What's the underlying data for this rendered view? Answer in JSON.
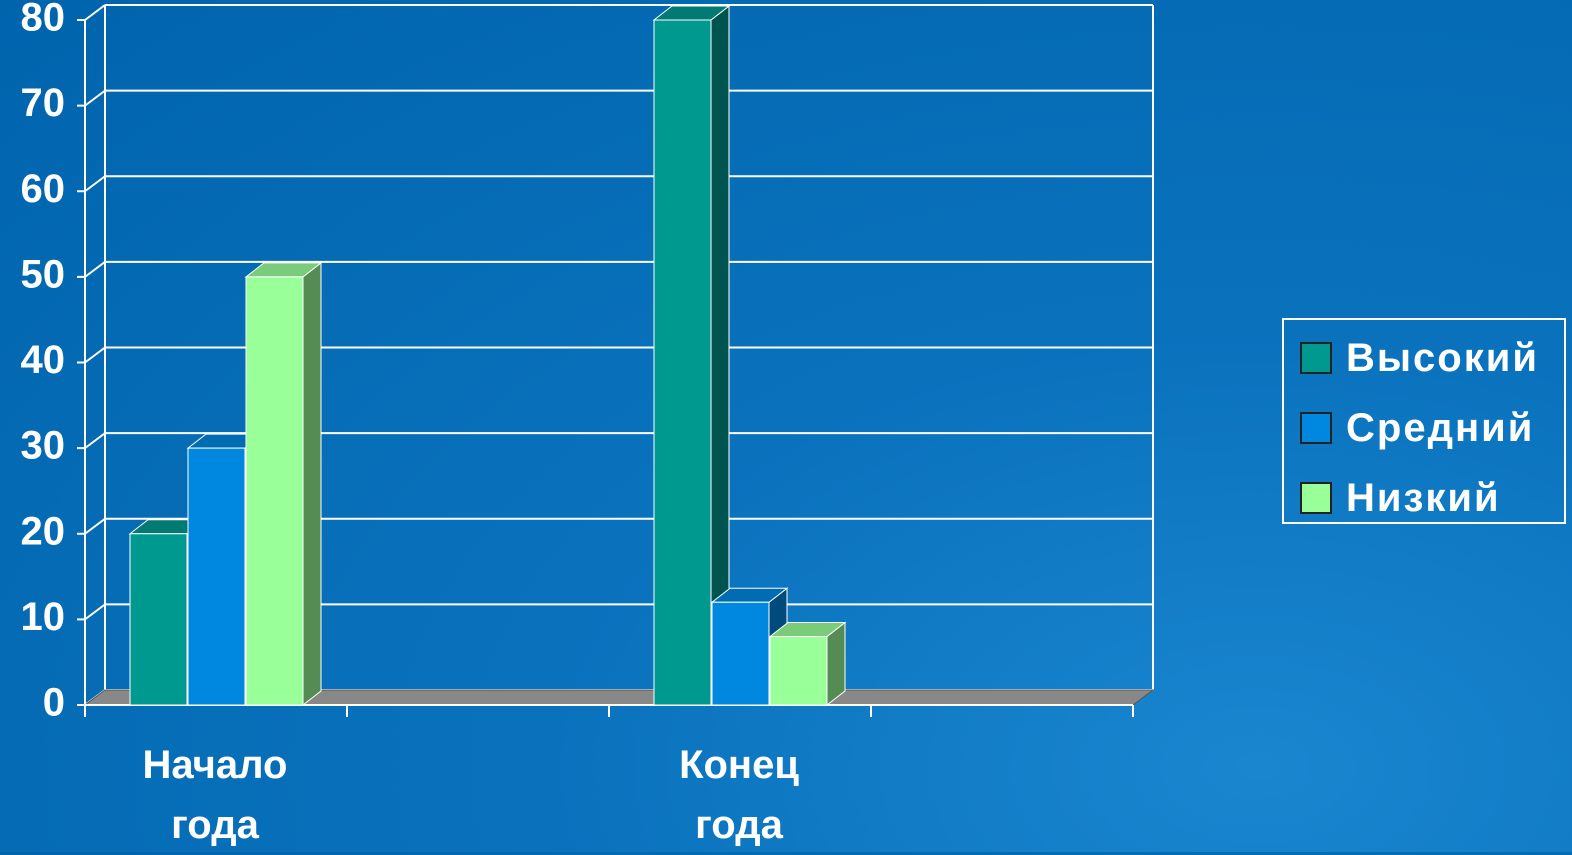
{
  "chart_data": {
    "type": "bar3d",
    "categories": [
      "Начало года",
      null,
      "Конец года",
      null
    ],
    "series": [
      {
        "name": "Высокий",
        "color": "#009990",
        "values": [
          20,
          null,
          80,
          null
        ]
      },
      {
        "name": "Средний",
        "color": "#0088e0",
        "values": [
          30,
          null,
          12,
          null
        ]
      },
      {
        "name": "Низкий",
        "color": "#99ff99",
        "values": [
          50,
          null,
          8,
          null
        ]
      }
    ],
    "ylim": [
      0,
      80
    ],
    "yticks": [
      0,
      10,
      20,
      30,
      40,
      50,
      60,
      70,
      80
    ],
    "grid": true,
    "legend": "right"
  }
}
